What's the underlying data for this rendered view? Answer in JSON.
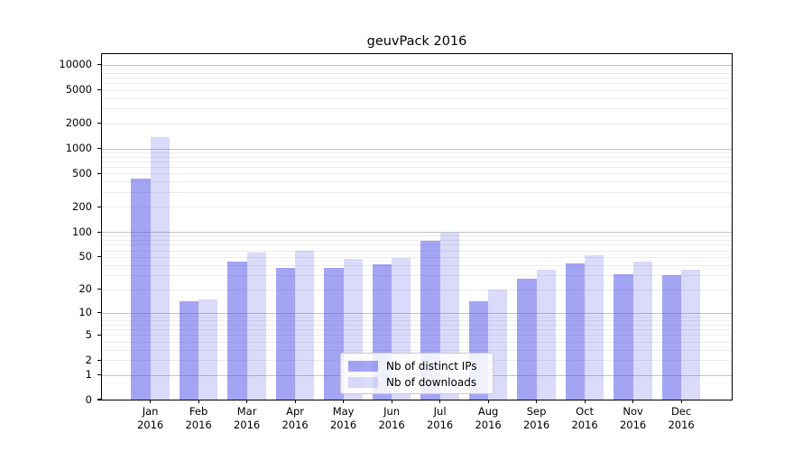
{
  "chart_data": {
    "type": "bar",
    "title": "geuvPack 2016",
    "categories": [
      "Jan 2016",
      "Feb 2016",
      "Mar 2016",
      "Apr 2016",
      "May 2016",
      "Jun 2016",
      "Jul 2016",
      "Aug 2016",
      "Sep 2016",
      "Oct 2016",
      "Nov 2016",
      "Dec 2016"
    ],
    "series": [
      {
        "name": "Nb of distinct IPs",
        "color": "rgba(80,80,235,0.52)",
        "values": [
          434,
          14,
          44,
          37,
          37,
          41,
          78,
          14,
          27,
          42,
          31,
          30
        ]
      },
      {
        "name": "Nb of downloads",
        "color": "rgba(80,80,235,0.21)",
        "values": [
          1360,
          15,
          57,
          59,
          47,
          49,
          97,
          20,
          35,
          52,
          44,
          35
        ]
      }
    ],
    "ytick_values": [
      0,
      1,
      2,
      5,
      10,
      20,
      50,
      100,
      200,
      500,
      1000,
      2000,
      5000,
      10000
    ],
    "major_grid_values": [
      1,
      10,
      100,
      1000,
      10000
    ],
    "scale": "log10(value+1)",
    "ylim": [
      0,
      12000
    ],
    "xlabel": "",
    "ylabel": "",
    "grid": "on",
    "legend_position": "inside-bottom-center"
  }
}
